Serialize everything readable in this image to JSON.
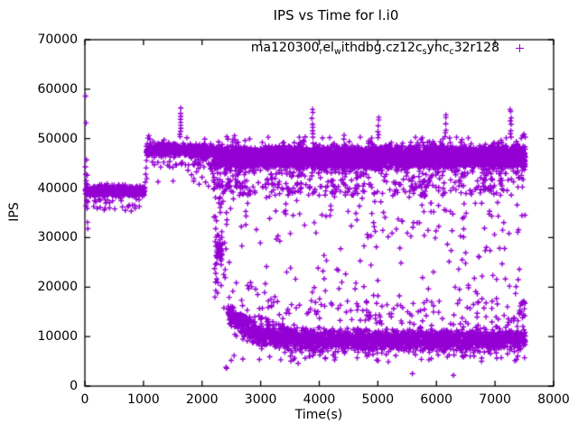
{
  "chart_data": {
    "type": "scatter",
    "title": "IPS vs Time for l.i0",
    "xlabel": "Time(s)",
    "ylabel": "IPS",
    "xlim": [
      0,
      8000
    ],
    "ylim": [
      0,
      70000
    ],
    "x_ticks": [
      0,
      1000,
      2000,
      3000,
      4000,
      5000,
      6000,
      7000,
      8000
    ],
    "y_ticks": [
      0,
      10000,
      20000,
      30000,
      40000,
      50000,
      60000,
      70000
    ],
    "grid": false,
    "legend_position": "top-right-inside",
    "marker": {
      "shape": "plus",
      "size": 7,
      "color": "#9400D3"
    },
    "axis_color": "#000000",
    "legend": {
      "marker_char": "+",
      "label_segments": [
        {
          "text": "ma120300"
        },
        {
          "text": "r",
          "sub": true
        },
        {
          "text": "el"
        },
        {
          "text": "w",
          "sub": true
        },
        {
          "text": "ithdbg.cz12c"
        },
        {
          "text": "s",
          "sub": true
        },
        {
          "text": "ync"
        },
        {
          "text": "c",
          "sub": true
        },
        {
          "text": "32r128"
        }
      ]
    },
    "point_generator": {
      "seed": 1337,
      "segments": [
        {
          "kind": "points",
          "name": "startup-cluster",
          "pts": [
            [
              8,
              44300
            ],
            [
              12,
              58600
            ],
            [
              20,
              53200
            ],
            [
              28,
              45700
            ],
            [
              15,
              42800
            ],
            [
              22,
              41500
            ],
            [
              35,
              39800
            ],
            [
              40,
              42600
            ],
            [
              30,
              37600
            ],
            [
              18,
              36400
            ],
            [
              45,
              33100
            ],
            [
              50,
              31800
            ],
            [
              25,
              40900
            ],
            [
              10,
              39500
            ],
            [
              33,
              38700
            ],
            [
              42,
              40700
            ],
            [
              38,
              35900
            ],
            [
              48,
              37200
            ]
          ]
        },
        {
          "kind": "band",
          "name": "warmup-band-39k",
          "t": [
            10,
            1025
          ],
          "step": 2.4,
          "mean": 39400,
          "sd": 520,
          "clip": [
            37800,
            40900
          ],
          "extras": [
            {
              "p": 0.05,
              "range": [
                36400,
                38300
              ]
            },
            {
              "p": 0.008,
              "range": [
                35300,
                36500
              ]
            }
          ]
        },
        {
          "kind": "points",
          "name": "warmup-low-row",
          "pts": [
            [
              150,
              36300
            ],
            [
              210,
              35900
            ],
            [
              260,
              36100
            ],
            [
              330,
              35600
            ],
            [
              420,
              36000
            ],
            [
              510,
              35800
            ],
            [
              640,
              36200
            ],
            [
              690,
              35500
            ]
          ]
        },
        {
          "kind": "points",
          "name": "step-up-transition",
          "pts": [
            [
              1030,
              41200
            ],
            [
              1038,
              42800
            ],
            [
              1045,
              44100
            ],
            [
              1052,
              45600
            ]
          ]
        },
        {
          "kind": "band",
          "name": "plateau-48k",
          "t": [
            1048,
            2188
          ],
          "step": 2.2,
          "mean": 47600,
          "sd": 650,
          "clip": [
            45500,
            49400
          ],
          "extras": [
            {
              "p": 0.05,
              "range": [
                44000,
                46200
              ]
            },
            {
              "p": 0.02,
              "range": [
                48900,
                50300
              ]
            },
            {
              "p": 0.012,
              "range": [
                40500,
                44500
              ]
            }
          ]
        },
        {
          "kind": "points",
          "name": "plateau-left-bump",
          "pts": [
            [
              1075,
              50100
            ],
            [
              1090,
              50600
            ],
            [
              1110,
              49900
            ]
          ]
        },
        {
          "kind": "column",
          "name": "spike-1630",
          "t": 1632,
          "jitter": 14,
          "ys": [
            50400,
            51500,
            52700,
            53900,
            55100,
            56200,
            50900,
            52100,
            53300,
            54500
          ]
        },
        {
          "kind": "points",
          "name": "plateau-under-tail",
          "pts": [
            [
              1760,
              43600
            ],
            [
              1820,
              42700
            ],
            [
              1860,
              41900
            ],
            [
              1905,
              43300
            ],
            [
              1950,
              40800
            ],
            [
              2000,
              42200
            ],
            [
              2060,
              41200
            ],
            [
              2110,
              40400
            ],
            [
              2130,
              44800
            ],
            [
              2145,
              43900
            ],
            [
              2160,
              44400
            ],
            [
              2172,
              43400
            ],
            [
              2180,
              44900
            ],
            [
              2185,
              42900
            ]
          ]
        },
        {
          "kind": "column",
          "name": "collapse-descent",
          "t": 2238,
          "jitter": 10,
          "ys": [
            33400,
            31800,
            30100,
            28300,
            26400,
            24600,
            22800,
            21000,
            19300
          ]
        },
        {
          "kind": "band",
          "name": "collapse-blob-27k",
          "t": [
            2248,
            2342
          ],
          "step": 2.1,
          "mean": 27200,
          "sd": 1150,
          "clip": [
            24300,
            29600
          ]
        },
        {
          "kind": "scatter",
          "name": "collapse-scatter",
          "t": [
            2195,
            2410
          ],
          "n": 34,
          "y": [
            17500,
            44000
          ],
          "pow": 1
        },
        {
          "kind": "points",
          "name": "collapse-low-outliers",
          "pts": [
            [
              2408,
              3800
            ],
            [
              2372,
              15800
            ]
          ]
        },
        {
          "kind": "band",
          "name": "steady-top-band-46k",
          "t": [
            2190,
            7520
          ],
          "step": 1.55,
          "mean": 46300,
          "sd": 1050,
          "clip": [
            43600,
            49400
          ],
          "extras": [
            {
              "p": 0.38,
              "range": [
                44200,
                48300
              ]
            },
            {
              "p": 0.13,
              "range": [
                38500,
                44600
              ]
            },
            {
              "p": 0.035,
              "range": [
                30000,
                41000
              ]
            },
            {
              "p": 0.01,
              "range": [
                20000,
                33000
              ]
            },
            {
              "p": 0.012,
              "range": [
                48900,
                50400
              ]
            }
          ]
        },
        {
          "kind": "column",
          "name": "spike-3885",
          "t": 3885,
          "jitter": 12,
          "ys": [
            50300,
            51600,
            52900,
            54100,
            55300,
            55900,
            51000,
            52300
          ]
        },
        {
          "kind": "column",
          "name": "spike-5005",
          "t": 5005,
          "jitter": 12,
          "ys": [
            50200,
            51400,
            52600,
            53800,
            54300,
            50800
          ]
        },
        {
          "kind": "column",
          "name": "spike-6150",
          "t": 6152,
          "jitter": 12,
          "ys": [
            50400,
            51700,
            53000,
            54300,
            54800,
            51200
          ]
        },
        {
          "kind": "column",
          "name": "spike-7270",
          "t": 7268,
          "jitter": 12,
          "ys": [
            50300,
            51600,
            52900,
            54200,
            55500,
            55900,
            51000,
            53600
          ]
        },
        {
          "kind": "column",
          "name": "bump-2550",
          "t": 2553,
          "jitter": 8,
          "ys": [
            49800,
            50600
          ]
        },
        {
          "kind": "column",
          "name": "bump-4420",
          "t": 4420,
          "jitter": 8,
          "ys": [
            49900,
            50700
          ]
        },
        {
          "kind": "points",
          "name": "end-top-rise",
          "pts": [
            [
              7448,
              50100
            ],
            [
              7472,
              50600
            ],
            [
              7495,
              50900
            ],
            [
              7515,
              50300
            ]
          ]
        },
        {
          "kind": "band",
          "name": "steady-bottom-band-9k",
          "t": [
            2442,
            7520
          ],
          "step": 2.3,
          "mean": 9300,
          "sd": 1150,
          "clip": [
            6300,
            21000
          ],
          "decay": {
            "amp": 5600,
            "tau": 400
          },
          "extras": [
            {
              "p": 0.05,
              "range": [
                12500,
                17500
              ]
            },
            {
              "p": 0.012,
              "range": [
                15500,
                20500
              ]
            },
            {
              "p": 0.02,
              "range": [
                5000,
                6400
              ]
            }
          ]
        },
        {
          "kind": "points",
          "name": "end-bottom-cluster",
          "pts": [
            [
              7350,
              18700
            ],
            [
              7360,
              20100
            ],
            [
              7390,
              13200
            ],
            [
              7395,
              21500
            ],
            [
              7412,
              14600
            ],
            [
              7415,
              23600
            ],
            [
              7430,
              16200
            ],
            [
              7452,
              15100
            ],
            [
              7468,
              13800
            ],
            [
              7480,
              16800
            ],
            [
              7500,
              15600
            ],
            [
              7510,
              14200
            ]
          ]
        },
        {
          "kind": "points",
          "name": "bottom-outliers",
          "pts": [
            [
              2420,
              3600
            ],
            [
              3640,
              4600
            ],
            [
              5180,
              4900
            ],
            [
              5590,
              2500
            ],
            [
              6290,
              2200
            ]
          ]
        },
        {
          "kind": "scatter",
          "name": "mid-gap-scatter",
          "t": [
            2450,
            7520
          ],
          "n": 95,
          "y": [
            13500,
            38500
          ],
          "pow": 1.3
        }
      ]
    }
  }
}
